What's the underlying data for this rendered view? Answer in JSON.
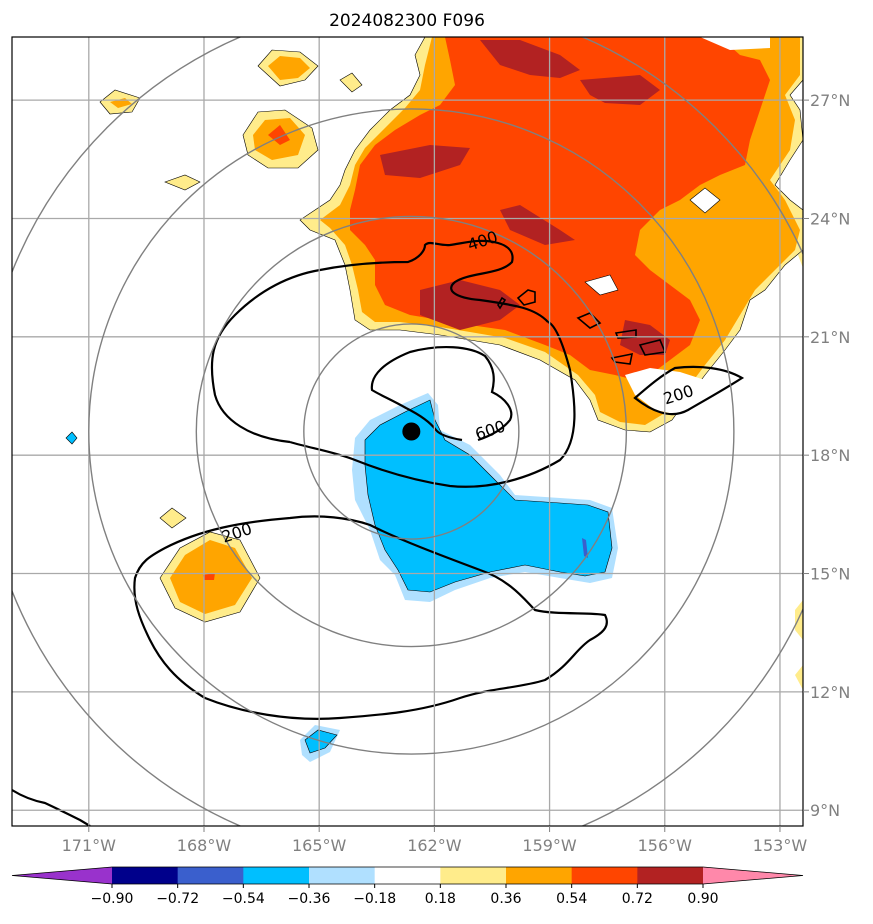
{
  "title": "2024082300 F096",
  "map": {
    "lon_range": [
      -173,
      -152.4
    ],
    "lat_range": [
      8.6,
      28.6
    ],
    "lon_ticks": [
      {
        "value": -171,
        "label": "171°W"
      },
      {
        "value": -168,
        "label": "168°W"
      },
      {
        "value": -165,
        "label": "165°W"
      },
      {
        "value": -162,
        "label": "162°W"
      },
      {
        "value": -159,
        "label": "159°W"
      },
      {
        "value": -156,
        "label": "156°W"
      },
      {
        "value": -153,
        "label": "153°W"
      }
    ],
    "lat_ticks": [
      {
        "value": 9,
        "label": "9°N"
      },
      {
        "value": 12,
        "label": "12°N"
      },
      {
        "value": 15,
        "label": "15°N"
      },
      {
        "value": 18,
        "label": "18°N"
      },
      {
        "value": 21,
        "label": "21°N"
      },
      {
        "value": 24,
        "label": "24°N"
      },
      {
        "value": 27,
        "label": "27°N"
      }
    ],
    "storm_center": {
      "lon": -162.6,
      "lat": 18.6
    },
    "range_rings_deg": [
      2.8,
      5.6,
      8.4,
      11.2
    ],
    "contour_labels": [
      {
        "text": "400",
        "lon": -160.7,
        "lat": 23.3
      },
      {
        "text": "600",
        "lon": -160.5,
        "lat": 18.5
      },
      {
        "text": "200",
        "lon": -155.6,
        "lat": 19.4
      },
      {
        "text": "200",
        "lon": -167.1,
        "lat": 15.9
      }
    ]
  },
  "colorbar": {
    "labels": [
      "−0.90",
      "−0.72",
      "−0.54",
      "−0.36",
      "−0.18",
      "0.18",
      "0.36",
      "0.54",
      "0.72",
      "0.90"
    ],
    "colors": [
      "#9932cc",
      "#00008b",
      "#3a5fcd",
      "#00bfff",
      "#b0e0ff",
      "#ffffff",
      "#ffec8b",
      "#ffa500",
      "#ff4500",
      "#b22222",
      "#ff88aa"
    ]
  },
  "field_colors": {
    "yellow": "#ffec8b",
    "orange": "#ffa500",
    "red": "#ff4500",
    "darkred": "#b22222",
    "lightblue": "#b0e0ff",
    "blue": "#00bfff",
    "royal": "#3a5fcd"
  }
}
